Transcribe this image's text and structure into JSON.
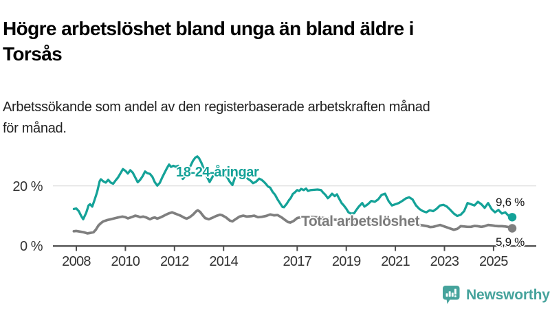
{
  "header": {
    "title": "Högre arbetslöshet bland unga än bland äldre i Torsås",
    "title_line1": "Högre arbetslöshet bland unga än bland äldre i",
    "title_line2": "Torsås",
    "subtitle": "Arbetssökande som andel av den registerbaserade arbetskraften månad för månad.",
    "subtitle_line1": "Arbetssökande som andel av den registerbaserade arbetskraften månad",
    "subtitle_line2": "för månad."
  },
  "chart_data": {
    "type": "line",
    "title": "Högre arbetslöshet bland unga än bland äldre i Torsås",
    "subtitle": "Arbetssökande som andel av den registerbaserade arbetskraften månad för månad.",
    "unit": "%",
    "xlabel": "",
    "ylabel": "",
    "x_range": [
      2007.9,
      2025.8
    ],
    "ylim": [
      0,
      31
    ],
    "grid": "single horizontal gridline at 20%",
    "legend_position": "inline-labels-on-lines",
    "y_ticks": [
      {
        "value": 20,
        "label": "20 %"
      },
      {
        "value": 0,
        "label": "0 %"
      }
    ],
    "x_ticks": [
      {
        "year": 2008,
        "label": "2008"
      },
      {
        "year": 2010,
        "label": "2010"
      },
      {
        "year": 2012,
        "label": "2012"
      },
      {
        "year": 2014,
        "label": "2014"
      },
      {
        "year": 2017,
        "label": "2017"
      },
      {
        "year": 2019,
        "label": "2019"
      },
      {
        "year": 2021,
        "label": "2021"
      },
      {
        "year": 2023,
        "label": "2023"
      },
      {
        "year": 2025,
        "label": "2025"
      }
    ],
    "series": [
      {
        "name": "18-24-åringar",
        "color": "#14a298",
        "end_label": "9,6 %",
        "end_value": 9.6,
        "points": [
          [
            2007.9,
            12.3
          ],
          [
            2008.0,
            12.5
          ],
          [
            2008.1,
            11.6
          ],
          [
            2008.2,
            10.0
          ],
          [
            2008.28,
            8.9
          ],
          [
            2008.4,
            11.0
          ],
          [
            2008.5,
            13.5
          ],
          [
            2008.56,
            13.9
          ],
          [
            2008.65,
            13.1
          ],
          [
            2008.75,
            15.5
          ],
          [
            2008.85,
            18.0
          ],
          [
            2008.95,
            21.5
          ],
          [
            2009.0,
            22.2
          ],
          [
            2009.1,
            21.5
          ],
          [
            2009.2,
            21.1
          ],
          [
            2009.3,
            22.0
          ],
          [
            2009.4,
            21.1
          ],
          [
            2009.5,
            20.7
          ],
          [
            2009.6,
            21.8
          ],
          [
            2009.7,
            22.8
          ],
          [
            2009.8,
            24.2
          ],
          [
            2009.9,
            25.6
          ],
          [
            2010.0,
            25.0
          ],
          [
            2010.1,
            24.1
          ],
          [
            2010.2,
            25.2
          ],
          [
            2010.3,
            24.4
          ],
          [
            2010.4,
            22.8
          ],
          [
            2010.5,
            21.2
          ],
          [
            2010.6,
            22.0
          ],
          [
            2010.7,
            23.2
          ],
          [
            2010.8,
            24.8
          ],
          [
            2010.9,
            24.2
          ],
          [
            2011.0,
            24.0
          ],
          [
            2011.1,
            23.0
          ],
          [
            2011.2,
            21.2
          ],
          [
            2011.3,
            20.1
          ],
          [
            2011.4,
            21.0
          ],
          [
            2011.5,
            22.8
          ],
          [
            2011.6,
            24.4
          ],
          [
            2011.7,
            26.0
          ],
          [
            2011.78,
            27.1
          ],
          [
            2011.86,
            26.3
          ],
          [
            2011.95,
            26.7
          ],
          [
            2012.05,
            26.4
          ],
          [
            2012.15,
            26.7
          ],
          [
            2012.25,
            25.8
          ],
          [
            2012.34,
            22.3
          ],
          [
            2012.45,
            23.4
          ],
          [
            2012.55,
            24.8
          ],
          [
            2012.65,
            26.6
          ],
          [
            2012.75,
            28.3
          ],
          [
            2012.85,
            29.4
          ],
          [
            2012.93,
            29.8
          ],
          [
            2013.0,
            29.2
          ],
          [
            2013.1,
            27.6
          ],
          [
            2013.2,
            25.6
          ],
          [
            2013.3,
            23.4
          ],
          [
            2013.43,
            21.3
          ],
          [
            2013.55,
            23.0
          ],
          [
            2013.65,
            24.6
          ],
          [
            2013.77,
            25.6
          ],
          [
            2013.87,
            25.2
          ],
          [
            2013.95,
            24.6
          ],
          [
            2014.05,
            23.8
          ],
          [
            2014.15,
            22.8
          ],
          [
            2014.25,
            21.4
          ],
          [
            2014.36,
            20.3
          ],
          [
            2014.5,
            23.7
          ],
          [
            2014.6,
            24.2
          ],
          [
            2014.7,
            24.5
          ],
          [
            2014.8,
            23.8
          ],
          [
            2014.9,
            23.0
          ],
          [
            2015.0,
            22.3
          ],
          [
            2015.11,
            21.7
          ],
          [
            2015.2,
            20.9
          ],
          [
            2015.31,
            21.3
          ],
          [
            2015.45,
            22.4
          ],
          [
            2015.55,
            22.0
          ],
          [
            2015.65,
            21.3
          ],
          [
            2015.73,
            20.6
          ],
          [
            2015.81,
            19.8
          ],
          [
            2015.9,
            19.4
          ],
          [
            2016.0,
            18.0
          ],
          [
            2016.1,
            17.0
          ],
          [
            2016.2,
            15.5
          ],
          [
            2016.32,
            14.0
          ],
          [
            2016.4,
            13.0
          ],
          [
            2016.46,
            12.9
          ],
          [
            2016.57,
            14.0
          ],
          [
            2016.66,
            15.2
          ],
          [
            2016.74,
            16.0
          ],
          [
            2016.82,
            17.3
          ],
          [
            2016.9,
            17.8
          ],
          [
            2017.0,
            18.6
          ],
          [
            2017.08,
            18.3
          ],
          [
            2017.16,
            19.0
          ],
          [
            2017.27,
            18.6
          ],
          [
            2017.36,
            19.1
          ],
          [
            2017.44,
            18.3
          ],
          [
            2017.55,
            18.6
          ],
          [
            2017.7,
            18.7
          ],
          [
            2017.83,
            18.8
          ],
          [
            2017.97,
            18.6
          ],
          [
            2018.05,
            17.8
          ],
          [
            2018.14,
            17.1
          ],
          [
            2018.25,
            15.9
          ],
          [
            2018.34,
            16.6
          ],
          [
            2018.42,
            17.4
          ],
          [
            2018.53,
            16.6
          ],
          [
            2018.62,
            17.2
          ],
          [
            2018.7,
            15.9
          ],
          [
            2018.81,
            14.3
          ],
          [
            2018.9,
            13.5
          ],
          [
            2019.0,
            12.4
          ],
          [
            2019.09,
            11.2
          ],
          [
            2019.18,
            10.8
          ],
          [
            2019.32,
            10.9
          ],
          [
            2019.4,
            11.9
          ],
          [
            2019.51,
            13.1
          ],
          [
            2019.65,
            14.3
          ],
          [
            2019.74,
            13.1
          ],
          [
            2019.88,
            13.9
          ],
          [
            2020.02,
            15.0
          ],
          [
            2020.16,
            14.7
          ],
          [
            2020.3,
            15.5
          ],
          [
            2020.44,
            17.0
          ],
          [
            2020.58,
            17.4
          ],
          [
            2020.72,
            15.0
          ],
          [
            2020.86,
            13.5
          ],
          [
            2021.0,
            13.9
          ],
          [
            2021.14,
            14.3
          ],
          [
            2021.28,
            15.0
          ],
          [
            2021.42,
            15.8
          ],
          [
            2021.56,
            16.2
          ],
          [
            2021.7,
            15.5
          ],
          [
            2021.84,
            13.5
          ],
          [
            2021.98,
            12.3
          ],
          [
            2022.12,
            11.6
          ],
          [
            2022.26,
            11.2
          ],
          [
            2022.4,
            11.9
          ],
          [
            2022.54,
            11.6
          ],
          [
            2022.68,
            12.4
          ],
          [
            2022.82,
            13.5
          ],
          [
            2022.96,
            13.7
          ],
          [
            2023.1,
            13.1
          ],
          [
            2023.24,
            12.0
          ],
          [
            2023.38,
            10.8
          ],
          [
            2023.52,
            10.0
          ],
          [
            2023.66,
            10.4
          ],
          [
            2023.8,
            11.6
          ],
          [
            2023.94,
            14.3
          ],
          [
            2024.08,
            13.9
          ],
          [
            2024.22,
            13.5
          ],
          [
            2024.36,
            14.7
          ],
          [
            2024.5,
            13.9
          ],
          [
            2024.64,
            12.7
          ],
          [
            2024.78,
            14.3
          ],
          [
            2024.92,
            12.3
          ],
          [
            2025.06,
            11.2
          ],
          [
            2025.2,
            12.0
          ],
          [
            2025.34,
            10.8
          ],
          [
            2025.48,
            11.2
          ],
          [
            2025.62,
            10.0
          ],
          [
            2025.76,
            9.6
          ]
        ]
      },
      {
        "name": "Total arbetslöshet",
        "color": "#7f7f7f",
        "end_label": "5,9 %",
        "end_value": 5.9,
        "points": [
          [
            2007.9,
            4.9
          ],
          [
            2008.0,
            5.0
          ],
          [
            2008.15,
            4.8
          ],
          [
            2008.3,
            4.6
          ],
          [
            2008.45,
            4.2
          ],
          [
            2008.6,
            4.4
          ],
          [
            2008.7,
            4.6
          ],
          [
            2008.8,
            5.5
          ],
          [
            2008.9,
            6.8
          ],
          [
            2009.0,
            7.6
          ],
          [
            2009.1,
            8.2
          ],
          [
            2009.25,
            8.6
          ],
          [
            2009.4,
            8.9
          ],
          [
            2009.55,
            9.2
          ],
          [
            2009.7,
            9.5
          ],
          [
            2009.88,
            9.8
          ],
          [
            2010.0,
            9.6
          ],
          [
            2010.1,
            9.2
          ],
          [
            2010.25,
            9.6
          ],
          [
            2010.4,
            10.1
          ],
          [
            2010.5,
            9.9
          ],
          [
            2010.6,
            9.6
          ],
          [
            2010.72,
            9.8
          ],
          [
            2010.85,
            9.5
          ],
          [
            2011.0,
            8.9
          ],
          [
            2011.1,
            9.3
          ],
          [
            2011.2,
            9.5
          ],
          [
            2011.3,
            9.1
          ],
          [
            2011.45,
            9.6
          ],
          [
            2011.6,
            10.2
          ],
          [
            2011.75,
            10.8
          ],
          [
            2011.9,
            11.2
          ],
          [
            2012.0,
            10.9
          ],
          [
            2012.12,
            10.5
          ],
          [
            2012.25,
            10.1
          ],
          [
            2012.4,
            9.4
          ],
          [
            2012.5,
            9.1
          ],
          [
            2012.62,
            9.6
          ],
          [
            2012.75,
            10.4
          ],
          [
            2012.88,
            11.5
          ],
          [
            2012.95,
            11.9
          ],
          [
            2013.05,
            11.3
          ],
          [
            2013.15,
            10.2
          ],
          [
            2013.25,
            9.3
          ],
          [
            2013.4,
            8.9
          ],
          [
            2013.55,
            9.4
          ],
          [
            2013.7,
            10.0
          ],
          [
            2013.85,
            10.4
          ],
          [
            2013.95,
            10.2
          ],
          [
            2014.1,
            9.5
          ],
          [
            2014.25,
            8.5
          ],
          [
            2014.36,
            8.2
          ],
          [
            2014.5,
            9.0
          ],
          [
            2014.65,
            9.8
          ],
          [
            2014.8,
            10.1
          ],
          [
            2014.95,
            9.8
          ],
          [
            2015.11,
            9.9
          ],
          [
            2015.25,
            10.1
          ],
          [
            2015.4,
            9.6
          ],
          [
            2015.55,
            9.7
          ],
          [
            2015.73,
            10.0
          ],
          [
            2015.9,
            10.5
          ],
          [
            2016.05,
            10.2
          ],
          [
            2016.2,
            10.3
          ],
          [
            2016.35,
            9.6
          ],
          [
            2016.5,
            8.7
          ],
          [
            2016.62,
            8.0
          ],
          [
            2016.72,
            7.8
          ],
          [
            2016.85,
            8.3
          ],
          [
            2017.0,
            9.3
          ],
          [
            2017.15,
            9.6
          ],
          [
            2017.35,
            9.8
          ],
          [
            2017.55,
            9.7
          ],
          [
            2017.75,
            9.6
          ],
          [
            2018.0,
            9.4
          ],
          [
            2018.25,
            9.1
          ],
          [
            2018.5,
            8.8
          ],
          [
            2018.75,
            8.6
          ],
          [
            2019.0,
            8.4
          ],
          [
            2019.25,
            8.0
          ],
          [
            2019.5,
            7.7
          ],
          [
            2019.75,
            7.8
          ],
          [
            2020.0,
            8.0
          ],
          [
            2020.25,
            8.6
          ],
          [
            2020.5,
            8.9
          ],
          [
            2020.75,
            8.6
          ],
          [
            2021.0,
            8.3
          ],
          [
            2021.25,
            8.0
          ],
          [
            2021.5,
            7.6
          ],
          [
            2021.75,
            7.3
          ],
          [
            2022.0,
            7.0
          ],
          [
            2022.15,
            6.8
          ],
          [
            2022.3,
            6.6
          ],
          [
            2022.42,
            6.3
          ],
          [
            2022.54,
            6.4
          ],
          [
            2022.68,
            6.7
          ],
          [
            2022.82,
            7.0
          ],
          [
            2022.96,
            6.6
          ],
          [
            2023.1,
            6.2
          ],
          [
            2023.24,
            5.8
          ],
          [
            2023.38,
            5.4
          ],
          [
            2023.52,
            5.7
          ],
          [
            2023.66,
            6.6
          ],
          [
            2023.8,
            6.5
          ],
          [
            2023.94,
            6.4
          ],
          [
            2024.08,
            6.4
          ],
          [
            2024.22,
            6.7
          ],
          [
            2024.36,
            6.6
          ],
          [
            2024.5,
            6.4
          ],
          [
            2024.64,
            6.6
          ],
          [
            2024.78,
            7.0
          ],
          [
            2024.92,
            6.9
          ],
          [
            2025.06,
            6.7
          ],
          [
            2025.2,
            6.6
          ],
          [
            2025.34,
            6.6
          ],
          [
            2025.48,
            6.5
          ],
          [
            2025.62,
            6.3
          ],
          [
            2025.76,
            5.9
          ]
        ]
      }
    ]
  },
  "footer": {
    "brand": "Newsworthy",
    "brand_color": "#46a39c"
  },
  "colors": {
    "youth_line": "#14a298",
    "total_line": "#7f7f7f",
    "axis": "#4d4d4d",
    "gridline": "#e0e0e0",
    "tick_text": "#333333",
    "title_text": "#000000",
    "end_label_text": "#111111",
    "background": "#ffffff"
  }
}
